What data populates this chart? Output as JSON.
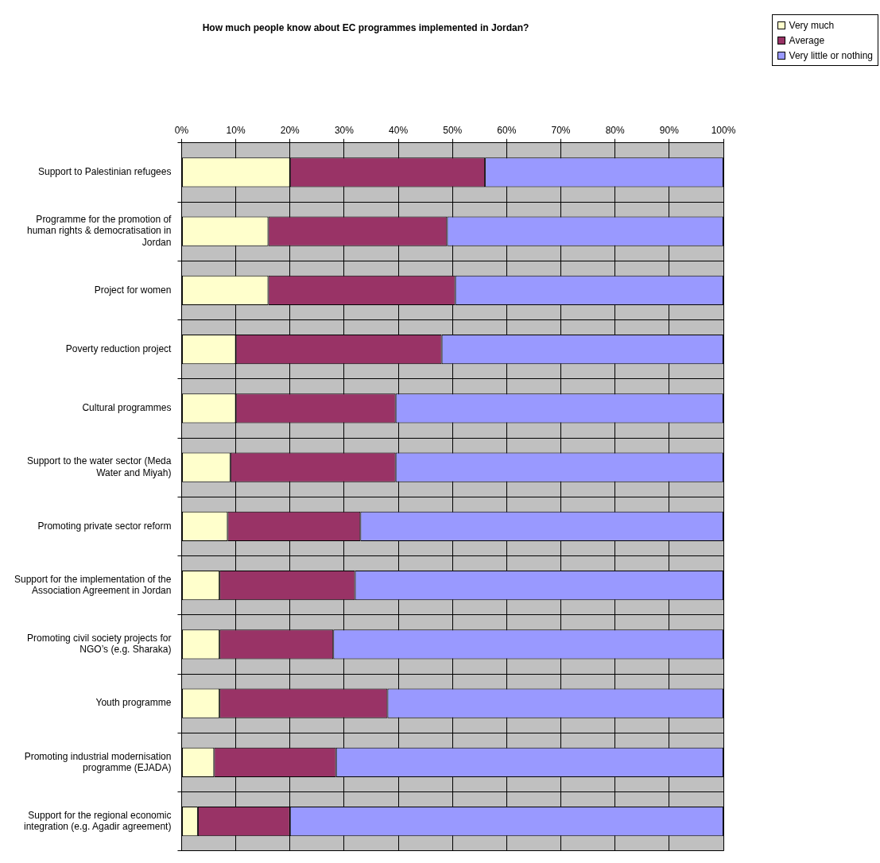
{
  "chart_data": {
    "type": "bar",
    "orientation": "horizontal",
    "stacked": true,
    "title": "How much people know about EC programmes implemented in Jordan?",
    "categories": [
      "Support to Palestinian refugees",
      "Programme for the promotion of human rights & democratisation in Jordan",
      "Project for women",
      "Poverty reduction project",
      "Cultural programmes",
      "Support to the water sector (Meda Water and Miyah)",
      "Promoting private sector reform",
      "Support for the implementation of the Association Agreement in Jordan",
      "Promoting civil society projects for NGO’s (e.g. Sharaka)",
      "Youth programme",
      "Promoting industrial modernisation programme (EJADA)",
      "Support for the regional economic integration (e.g. Agadir agreement)"
    ],
    "series": [
      {
        "name": "Very much",
        "color": "#ffffcc",
        "values": [
          20,
          16,
          16,
          10,
          10,
          9,
          8.5,
          7,
          7,
          7,
          6,
          3
        ]
      },
      {
        "name": "Average",
        "color": "#993366",
        "values": [
          36,
          33,
          34.5,
          38,
          29.5,
          30.5,
          24.5,
          25,
          21,
          31,
          22.5,
          17
        ]
      },
      {
        "name": "Very little or nothing",
        "color": "#9999ff",
        "values": [
          44,
          51,
          49.5,
          52,
          60.5,
          60.5,
          67,
          68,
          72,
          62,
          71.5,
          80
        ]
      }
    ],
    "xlim": [
      0,
      100
    ],
    "xticks": [
      {
        "value": 0,
        "label": "0%"
      },
      {
        "value": 10,
        "label": "10%"
      },
      {
        "value": 20,
        "label": "20%"
      },
      {
        "value": 30,
        "label": "30%"
      },
      {
        "value": 40,
        "label": "40%"
      },
      {
        "value": 50,
        "label": "50%"
      },
      {
        "value": 60,
        "label": "60%"
      },
      {
        "value": 70,
        "label": "70%"
      },
      {
        "value": 80,
        "label": "80%"
      },
      {
        "value": 90,
        "label": "90%"
      },
      {
        "value": 100,
        "label": "100%"
      }
    ],
    "grid": true,
    "legend": "top right"
  }
}
